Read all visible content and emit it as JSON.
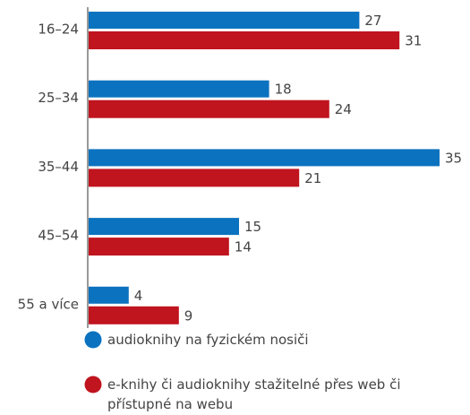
{
  "chart_data": {
    "type": "bar",
    "orientation": "horizontal",
    "categories": [
      "16–24",
      "25–34",
      "35–44",
      "45–54",
      "55 a více"
    ],
    "series": [
      {
        "name": "audioknihy na fyzickém nosiči",
        "color": "#0b72bf",
        "values": [
          27,
          18,
          35,
          15,
          4
        ]
      },
      {
        "name": "e-knihy či audioknihy stažitelné přes web či přístupné na webu",
        "color": "#c0141e",
        "values": [
          31,
          24,
          21,
          14,
          9
        ]
      }
    ]
  }
}
